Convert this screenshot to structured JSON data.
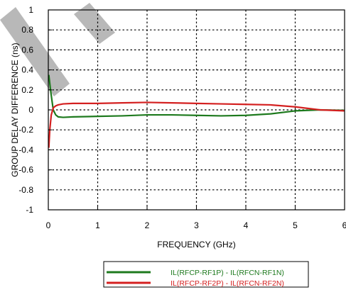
{
  "chart_data": {
    "type": "line",
    "title": "",
    "xlabel": "FREQUENCY (GHz)",
    "ylabel": "GROUP DELAY DIFFERENCE (ns)",
    "xlim": [
      0,
      6
    ],
    "ylim": [
      -1,
      1
    ],
    "xticks": [
      0,
      1,
      2,
      3,
      4,
      5,
      6
    ],
    "yticks": [
      -1,
      -0.8,
      -0.6,
      -0.4,
      -0.2,
      0,
      0.2,
      0.4,
      0.6,
      0.8,
      1
    ],
    "grid": true,
    "legend_position": "bottom-center, below chart",
    "series": [
      {
        "name": "IL(RFCP-RF1P) - IL(RFCN-RF1N)",
        "color": "#1e7a1e",
        "x": [
          0.01,
          0.05,
          0.1,
          0.15,
          0.2,
          0.3,
          0.5,
          1,
          1.5,
          2,
          2.5,
          3,
          3.5,
          4,
          4.5,
          5,
          5.5,
          6
        ],
        "y": [
          0.35,
          0.18,
          0.0,
          -0.05,
          -0.07,
          -0.075,
          -0.07,
          -0.065,
          -0.06,
          -0.05,
          -0.05,
          -0.055,
          -0.06,
          -0.055,
          -0.04,
          -0.01,
          0.0,
          -0.005
        ]
      },
      {
        "name": "IL(RFCP-RF2P) - IL(RFCN-RF2N)",
        "color": "#d42020",
        "x": [
          0.01,
          0.03,
          0.06,
          0.1,
          0.15,
          0.2,
          0.3,
          0.5,
          1,
          1.5,
          2,
          2.5,
          3,
          3.5,
          4,
          4.5,
          5,
          5.5,
          6
        ],
        "y": [
          -0.38,
          -0.2,
          -0.05,
          0.02,
          0.04,
          0.05,
          0.06,
          0.065,
          0.065,
          0.07,
          0.075,
          0.07,
          0.065,
          0.06,
          0.055,
          0.05,
          0.03,
          0.0,
          -0.01
        ]
      }
    ]
  }
}
